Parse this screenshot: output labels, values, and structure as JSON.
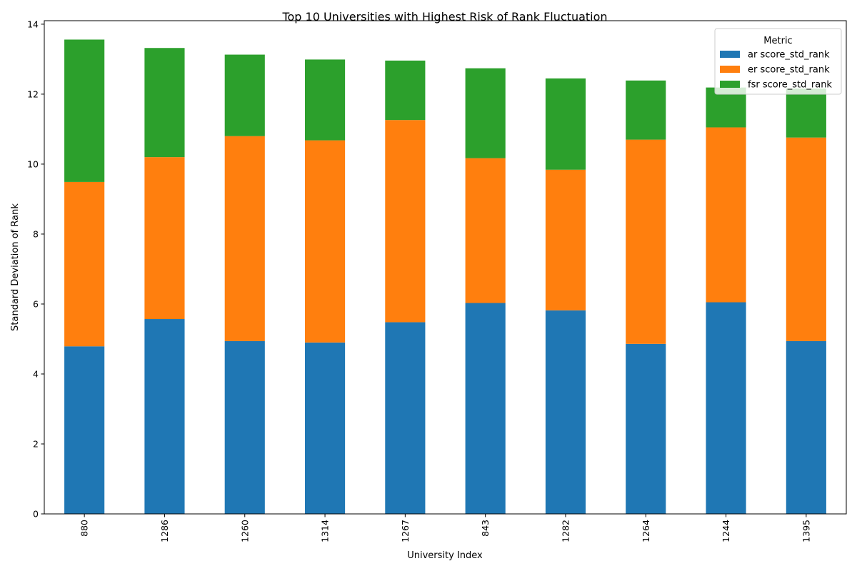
{
  "chart_data": {
    "type": "bar",
    "stacked": true,
    "title": "Top 10 Universities with Highest Risk of Rank Fluctuation",
    "xlabel": "University Index",
    "ylabel": "Standard Deviation of Rank",
    "categories": [
      "880",
      "1286",
      "1260",
      "1314",
      "1267",
      "843",
      "1282",
      "1264",
      "1244",
      "1395"
    ],
    "ylim": [
      0,
      14.1
    ],
    "yticks": [
      0,
      2,
      4,
      6,
      8,
      10,
      12,
      14
    ],
    "grid": false,
    "legend": {
      "title": "Metric",
      "placement": "top-right"
    },
    "series": [
      {
        "name": "ar score_std_rank",
        "color": "#1f77b4",
        "values": [
          4.79,
          5.57,
          4.94,
          4.9,
          5.48,
          6.03,
          5.82,
          4.86,
          6.05,
          4.94
        ]
      },
      {
        "name": "er score_std_rank",
        "color": "#ff7f0e",
        "values": [
          4.7,
          4.63,
          5.86,
          5.78,
          5.78,
          4.14,
          4.02,
          5.84,
          5.0,
          5.82
        ]
      },
      {
        "name": "fsr score_std_rank",
        "color": "#2ca02c",
        "values": [
          4.07,
          3.12,
          2.33,
          2.31,
          1.7,
          2.57,
          2.61,
          1.69,
          1.14,
          1.4
        ]
      }
    ]
  }
}
